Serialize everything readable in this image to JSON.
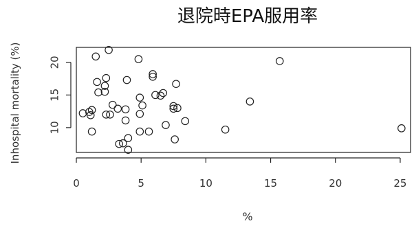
{
  "chart_data": {
    "type": "scatter",
    "title": "退院時EPA服用率",
    "xlabel": "%",
    "ylabel": "Inhospital mortality (%)",
    "xlim": [
      0,
      25.8
    ],
    "ylim": [
      6.2,
      22.3
    ],
    "xticks": [
      0,
      5,
      10,
      15,
      20,
      25
    ],
    "yticks": [
      10,
      15,
      20
    ],
    "grid": false,
    "marker": "open-circle",
    "points": [
      {
        "x": 1.5,
        "y": 20.9
      },
      {
        "x": 2.5,
        "y": 21.9
      },
      {
        "x": 4.8,
        "y": 20.5
      },
      {
        "x": 15.7,
        "y": 20.2
      },
      {
        "x": 5.9,
        "y": 18.2
      },
      {
        "x": 5.9,
        "y": 17.8
      },
      {
        "x": 2.3,
        "y": 17.6
      },
      {
        "x": 3.9,
        "y": 17.3
      },
      {
        "x": 1.6,
        "y": 17.0
      },
      {
        "x": 7.7,
        "y": 16.7
      },
      {
        "x": 2.2,
        "y": 16.4
      },
      {
        "x": 1.7,
        "y": 15.4
      },
      {
        "x": 2.2,
        "y": 15.5
      },
      {
        "x": 6.7,
        "y": 15.3
      },
      {
        "x": 6.1,
        "y": 15.0
      },
      {
        "x": 6.5,
        "y": 14.9
      },
      {
        "x": 4.9,
        "y": 14.6
      },
      {
        "x": 13.4,
        "y": 14.0
      },
      {
        "x": 2.8,
        "y": 13.5
      },
      {
        "x": 5.1,
        "y": 13.4
      },
      {
        "x": 7.5,
        "y": 13.3
      },
      {
        "x": 7.8,
        "y": 13.0
      },
      {
        "x": 7.5,
        "y": 12.9
      },
      {
        "x": 3.2,
        "y": 12.9
      },
      {
        "x": 3.8,
        "y": 12.8
      },
      {
        "x": 1.2,
        "y": 12.7
      },
      {
        "x": 1.0,
        "y": 12.4
      },
      {
        "x": 0.5,
        "y": 12.2
      },
      {
        "x": 2.3,
        "y": 12.0
      },
      {
        "x": 2.6,
        "y": 12.0
      },
      {
        "x": 4.9,
        "y": 12.1
      },
      {
        "x": 1.1,
        "y": 11.9
      },
      {
        "x": 3.8,
        "y": 11.1
      },
      {
        "x": 8.4,
        "y": 11.0
      },
      {
        "x": 6.9,
        "y": 10.4
      },
      {
        "x": 25.1,
        "y": 9.9
      },
      {
        "x": 11.5,
        "y": 9.7
      },
      {
        "x": 1.2,
        "y": 9.4
      },
      {
        "x": 4.9,
        "y": 9.4
      },
      {
        "x": 5.6,
        "y": 9.4
      },
      {
        "x": 4.0,
        "y": 8.4
      },
      {
        "x": 7.6,
        "y": 8.2
      },
      {
        "x": 3.3,
        "y": 7.5
      },
      {
        "x": 3.6,
        "y": 7.6
      },
      {
        "x": 4.0,
        "y": 6.6
      }
    ]
  }
}
